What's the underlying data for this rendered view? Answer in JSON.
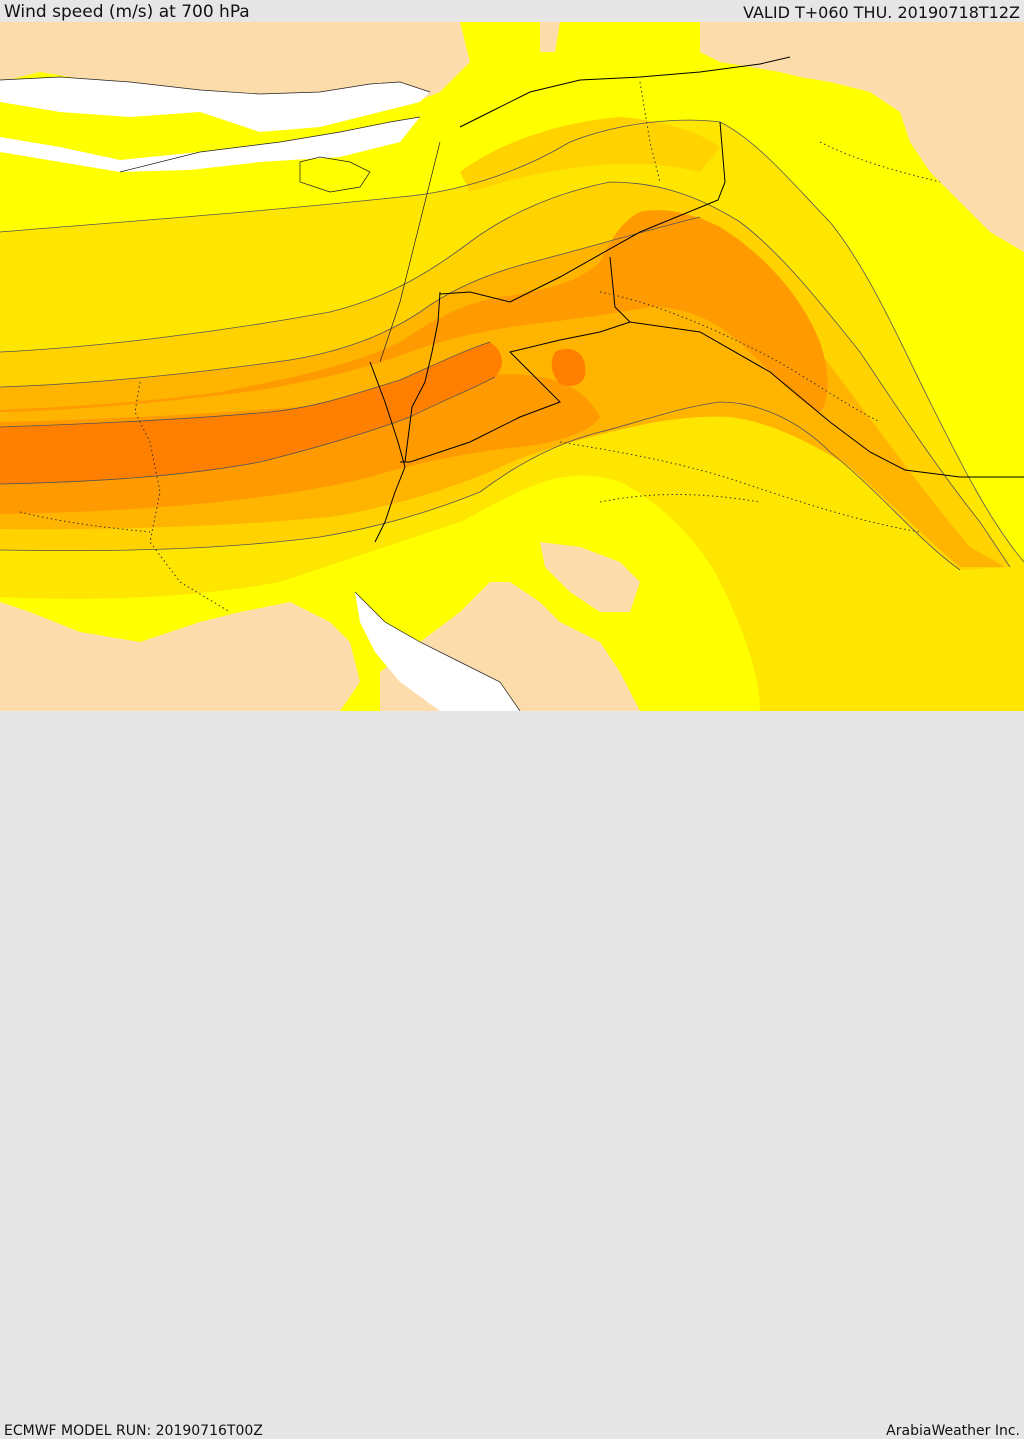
{
  "header": {
    "title": "Wind speed (m/s) at 700 hPa",
    "valid": "VALID T+060 THU. 20190718T12Z"
  },
  "footer": {
    "model_run": "ECMWF MODEL RUN: 20190716T00Z",
    "credit": "ArabiaWeather Inc."
  },
  "palette": {
    "land_low": "#fcdcaa",
    "sea": "#ffffff",
    "wind_1": "#ffff00",
    "wind_2": "#ffe600",
    "wind_3": "#ffd200",
    "wind_4": "#ffb400",
    "wind_5": "#ff9a00",
    "wind_6": "#ff7f00",
    "border": "#000000"
  }
}
